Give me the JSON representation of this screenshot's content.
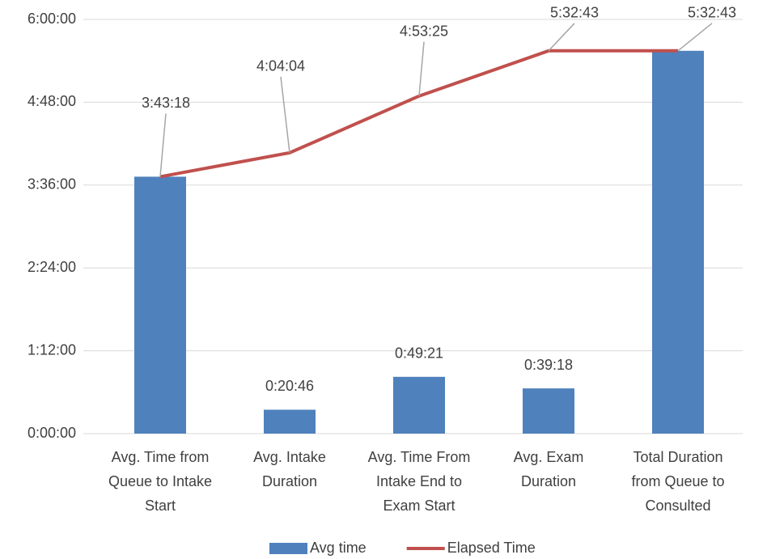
{
  "chart_data": {
    "type": "bar_line",
    "categories": [
      "Avg. Time from\nQueue to Intake\nStart",
      "Avg. Intake\nDuration",
      "Avg. Time From\nIntake End to\nExam Start",
      "Avg. Exam\nDuration",
      "Total Duration\nfrom Queue to\nConsulted"
    ],
    "series": [
      {
        "name": "Avg time",
        "type": "bar",
        "color": "#4f81bd",
        "values": [
          13398,
          1246,
          2961,
          2358,
          19963
        ],
        "value_labels": [
          null,
          "0:20:46",
          "0:49:21",
          "0:39:18",
          null
        ]
      },
      {
        "name": "Elapsed Time",
        "type": "line",
        "color": "#c0504d",
        "values": [
          13398,
          14644,
          17605,
          19963,
          19963
        ],
        "value_labels": [
          "3:43:18",
          "4:04:04",
          "4:53:25",
          "5:32:43",
          "5:32:43"
        ]
      }
    ],
    "ylim": [
      0,
      21600
    ],
    "yticks": [
      {
        "value": 0,
        "label": "0:00:00"
      },
      {
        "value": 4320,
        "label": "1:12:00"
      },
      {
        "value": 8640,
        "label": "2:24:00"
      },
      {
        "value": 12960,
        "label": "3:36:00"
      },
      {
        "value": 17280,
        "label": "4:48:00"
      },
      {
        "value": 21600,
        "label": "6:00:00"
      }
    ],
    "grid": true,
    "legend": "bottom"
  }
}
